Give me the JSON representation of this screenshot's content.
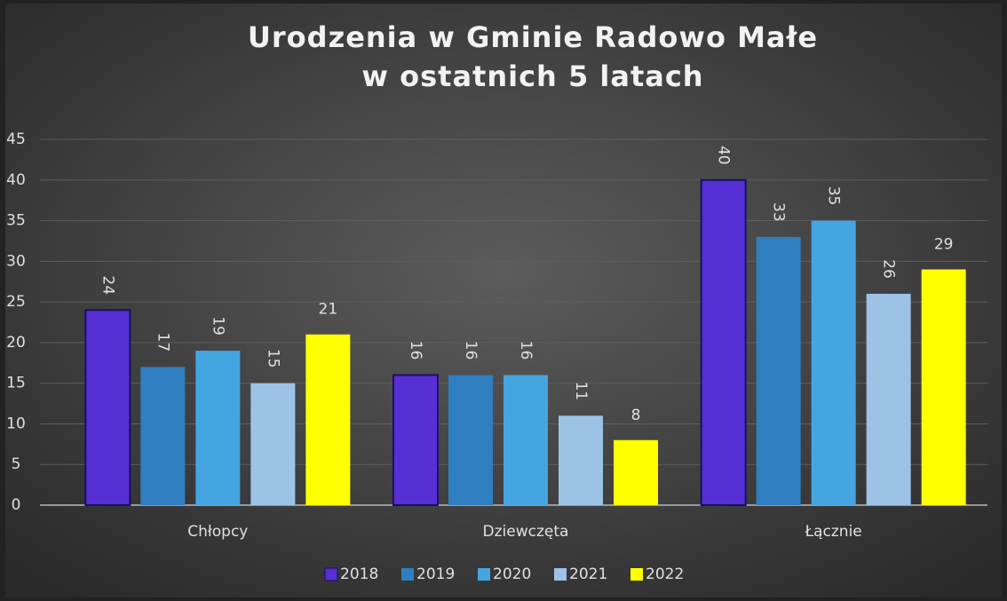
{
  "chart_data": {
    "type": "bar",
    "title": [
      "Urodzenia w Gminie Radowo Małe",
      "w ostatnich 5 latach"
    ],
    "categories": [
      "Chłopcy",
      "Dziewczęta",
      "Łącznie"
    ],
    "series": [
      {
        "name": "2018",
        "color": "#5530d4",
        "values": [
          24,
          16,
          40
        ]
      },
      {
        "name": "2019",
        "color": "#2f7fc0",
        "values": [
          17,
          16,
          33
        ]
      },
      {
        "name": "2020",
        "color": "#45a5e0",
        "values": [
          19,
          16,
          35
        ]
      },
      {
        "name": "2021",
        "color": "#9cc3e6",
        "values": [
          15,
          11,
          26
        ]
      },
      {
        "name": "2022",
        "color": "#ffff00",
        "values": [
          21,
          8,
          29
        ]
      }
    ],
    "ylim": [
      0,
      45
    ],
    "yticks": [
      0,
      5,
      10,
      15,
      20,
      25,
      30,
      35,
      40,
      45
    ],
    "grid": true,
    "legend": "bottom"
  }
}
